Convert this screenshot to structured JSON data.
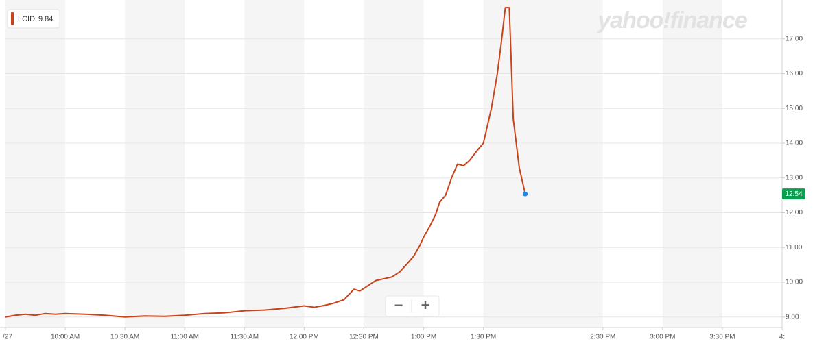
{
  "chart_data": {
    "type": "line",
    "watermark": "yahoo!finance",
    "previous_close": 9.84,
    "controls": [
      "−",
      "+"
    ],
    "x": [
      570,
      575,
      580,
      585,
      590,
      595,
      600,
      610,
      620,
      630,
      640,
      650,
      660,
      670,
      680,
      690,
      700,
      710,
      720,
      725,
      730,
      735,
      740,
      745,
      748,
      752,
      756,
      760,
      764,
      768,
      772,
      775,
      778,
      780,
      783,
      786,
      788,
      791,
      794,
      797,
      800,
      803,
      807,
      810,
      814,
      817,
      819,
      821,
      823,
      825,
      828,
      831
    ],
    "series": [
      {
        "name": "LCID",
        "color": "#c9421a",
        "values": [
          9.0,
          9.05,
          9.08,
          9.05,
          9.1,
          9.08,
          9.1,
          9.08,
          9.05,
          9.0,
          9.03,
          9.02,
          9.05,
          9.1,
          9.12,
          9.18,
          9.2,
          9.25,
          9.32,
          9.28,
          9.33,
          9.4,
          9.5,
          9.8,
          9.75,
          9.9,
          10.05,
          10.1,
          10.15,
          10.3,
          10.55,
          10.75,
          11.05,
          11.3,
          11.6,
          11.95,
          12.3,
          12.5,
          13.0,
          13.4,
          13.35,
          13.5,
          13.8,
          14.0,
          15.0,
          16.0,
          16.9,
          17.9,
          17.9,
          14.7,
          13.3,
          12.54
        ]
      }
    ],
    "last_point_color": "#1e88e5",
    "price_tag_color": "#0b9e4f",
    "xlim": [
      570,
      960
    ],
    "xticks": [
      {
        "value": 570,
        "label": "/27"
      },
      {
        "value": 600,
        "label": "10:00 AM"
      },
      {
        "value": 630,
        "label": "10:30 AM"
      },
      {
        "value": 660,
        "label": "11:00 AM"
      },
      {
        "value": 690,
        "label": "11:30 AM"
      },
      {
        "value": 720,
        "label": "12:00 PM"
      },
      {
        "value": 750,
        "label": "12:30 PM"
      },
      {
        "value": 780,
        "label": "1:00 PM"
      },
      {
        "value": 810,
        "label": "1:30 PM"
      },
      {
        "value": 870,
        "label": "2:30 PM"
      },
      {
        "value": 900,
        "label": "3:00 PM"
      },
      {
        "value": 930,
        "label": "3:30 PM"
      },
      {
        "value": 960,
        "label": "4:"
      }
    ],
    "ylim": [
      8.7,
      18.02
    ],
    "yticks": [
      {
        "value": 9,
        "label": "9.00"
      },
      {
        "value": 10,
        "label": "10.00"
      },
      {
        "value": 11,
        "label": "11.00"
      },
      {
        "value": 12,
        "label": "12.00"
      },
      {
        "value": 13,
        "label": "13.00"
      },
      {
        "value": 14,
        "label": "14.00"
      },
      {
        "value": 15,
        "label": "15.00"
      },
      {
        "value": 16,
        "label": "16.00"
      },
      {
        "value": 17,
        "label": "17.00"
      }
    ],
    "grid": true,
    "shaded_bands": true
  }
}
